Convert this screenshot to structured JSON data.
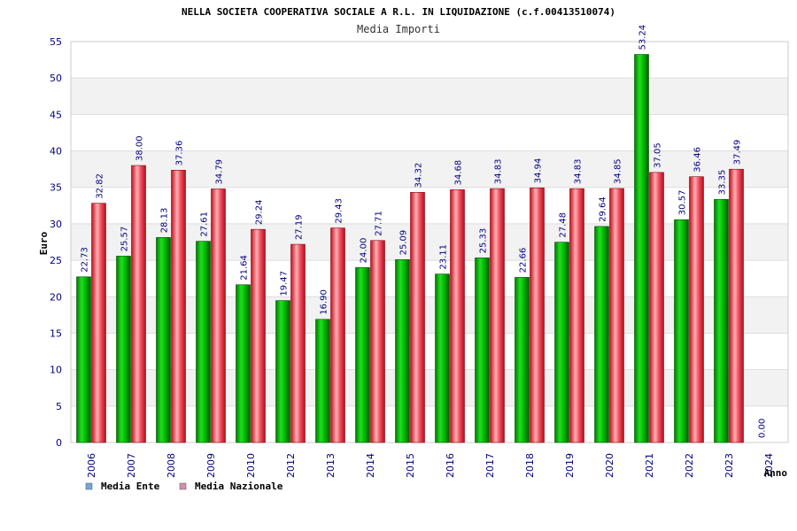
{
  "chart_data": {
    "type": "bar",
    "title": "NELLA SOCIETA COOPERATIVA SOCIALE A R.L. IN LIQUIDAZIONE (c.f.00413510074)",
    "subtitle": "Media Importi",
    "xlabel": "Anno",
    "ylabel": "Euro",
    "ylim": [
      0,
      55
    ],
    "yticks": [
      0,
      5,
      10,
      15,
      20,
      25,
      30,
      35,
      40,
      45,
      50,
      55
    ],
    "grid": true,
    "legend_position": "bottom-left",
    "categories": [
      "2006",
      "2007",
      "2008",
      "2009",
      "2010",
      "2012",
      "2013",
      "2014",
      "2015",
      "2016",
      "2017",
      "2018",
      "2019",
      "2020",
      "2021",
      "2022",
      "2023",
      "2024"
    ],
    "series": [
      {
        "name": "Media Ente",
        "color": "#00c000",
        "legend_color": "#6fa8dc",
        "values": [
          22.73,
          25.57,
          28.13,
          27.61,
          21.64,
          19.47,
          16.9,
          24.0,
          25.09,
          23.11,
          25.33,
          22.66,
          27.48,
          29.64,
          53.24,
          30.57,
          33.35,
          0.0
        ],
        "labels": [
          "22.73",
          "25.57",
          "28.13",
          "27.61",
          "21.64",
          "19.47",
          "16.90",
          "24.00",
          "25.09",
          "23.11",
          "25.33",
          "22.66",
          "27.48",
          "29.64",
          "53.24",
          "30.57",
          "33.35",
          "0.00"
        ]
      },
      {
        "name": "Media Nazionale",
        "color": "#e8202a",
        "legend_color": "#d98cb3",
        "values": [
          32.82,
          38.0,
          37.36,
          34.79,
          29.24,
          27.19,
          29.43,
          27.71,
          34.32,
          34.68,
          34.83,
          34.94,
          34.83,
          34.85,
          37.05,
          36.46,
          37.49,
          null
        ],
        "labels": [
          "32.82",
          "38.00",
          "37.36",
          "34.79",
          "29.24",
          "27.19",
          "29.43",
          "27.71",
          "34.32",
          "34.68",
          "34.83",
          "34.94",
          "34.83",
          "34.85",
          "37.05",
          "36.46",
          "37.49",
          ""
        ]
      }
    ]
  }
}
